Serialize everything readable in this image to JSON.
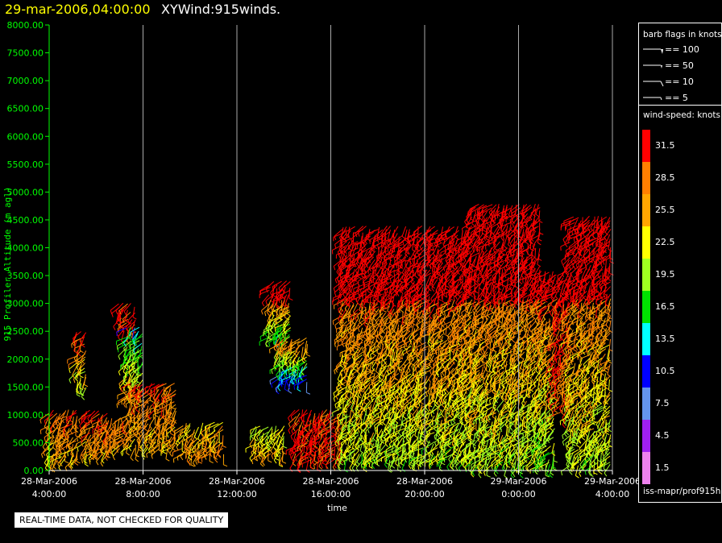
{
  "header": {
    "date_text": "29-mar-2006,04:00:00",
    "product_text": "XYWind:915winds."
  },
  "footer": {
    "quality_note": "REAL-TIME DATA, NOT CHECKED FOR QUALITY",
    "source_label": "iss-mapr/prof915h"
  },
  "legend": {
    "barb_title": "barb flags in knots",
    "barbs": [
      "== 100",
      "== 50",
      "== 10",
      "== 5"
    ],
    "speed_title": "wind-speed: knots",
    "speed_bins": [
      {
        "label": "31.5",
        "color": "#ff0000"
      },
      {
        "label": "28.5",
        "color": "#ff7f00"
      },
      {
        "label": "25.5",
        "color": "#ffa500"
      },
      {
        "label": "22.5",
        "color": "#ffff00"
      },
      {
        "label": "19.5",
        "color": "#a0ff20"
      },
      {
        "label": "16.5",
        "color": "#00e000"
      },
      {
        "label": "13.5",
        "color": "#00ffff"
      },
      {
        "label": "10.5",
        "color": "#0000ff"
      },
      {
        "label": "7.5",
        "color": "#6495ed"
      },
      {
        "label": "4.5",
        "color": "#a020f0"
      },
      {
        "label": "1.5",
        "color": "#ee82ee"
      }
    ]
  },
  "chart_data": {
    "type": "scatter",
    "title": "29-mar-2006,04:00:00  XYWind:915winds.",
    "xlabel": "time",
    "ylabel": "915 Profiler Altitude (m agl)",
    "xlim_hours": [
      0,
      24
    ],
    "ylim": [
      0,
      8000
    ],
    "yticks": [
      "0.00",
      "500.00",
      "1000.00",
      "1500.00",
      "2000.00",
      "2500.00",
      "3000.00",
      "3500.00",
      "4000.00",
      "4500.00",
      "5000.00",
      "5500.00",
      "6000.00",
      "6500.00",
      "7000.00",
      "7500.00",
      "8000.00"
    ],
    "xticks": [
      {
        "date": "28-Mar-2006",
        "time": "4:00:00"
      },
      {
        "date": "28-Mar-2006",
        "time": "8:00:00"
      },
      {
        "date": "28-Mar-2006",
        "time": "12:00:00"
      },
      {
        "date": "28-Mar-2006",
        "time": "16:00:00"
      },
      {
        "date": "28-Mar-2006",
        "time": "20:00:00"
      },
      {
        "date": "29-Mar-2006",
        "time": "0:00:00"
      },
      {
        "date": "29-Mar-2006",
        "time": "4:00:00"
      }
    ],
    "grid": "vertical",
    "data_groups": [
      {
        "t_start": 0.0,
        "t_end": 1.2,
        "z_bottom": 200,
        "z_top": 1100,
        "speed_top": 30,
        "speed_bottom": 24
      },
      {
        "t_start": 1.2,
        "t_end": 1.6,
        "z_bottom": 1500,
        "z_top": 2500,
        "speed_top": 30,
        "speed_bottom": 20
      },
      {
        "t_start": 1.6,
        "t_end": 2.5,
        "z_bottom": 300,
        "z_top": 1100,
        "speed_top": 31,
        "speed_bottom": 25
      },
      {
        "t_start": 2.5,
        "t_end": 3.5,
        "z_bottom": 400,
        "z_top": 1000,
        "speed_top": 29,
        "speed_bottom": 26
      },
      {
        "t_start": 3.0,
        "t_end": 3.7,
        "z_bottom": 2500,
        "z_top": 3000,
        "speed_top": 32,
        "speed_bottom": 30
      },
      {
        "t_start": 3.3,
        "t_end": 4.1,
        "z_bottom": 1300,
        "z_top": 2600,
        "speed_top": 14,
        "speed_bottom": 26
      },
      {
        "t_start": 3.5,
        "t_end": 5.5,
        "z_bottom": 400,
        "z_top": 1600,
        "speed_top": 30,
        "speed_bottom": 24
      },
      {
        "t_start": 5.7,
        "t_end": 7.5,
        "z_bottom": 300,
        "z_top": 900,
        "speed_top": 24,
        "speed_bottom": 27
      },
      {
        "t_start": 8.8,
        "t_end": 10.0,
        "z_bottom": 300,
        "z_top": 800,
        "speed_top": 21,
        "speed_bottom": 26
      },
      {
        "t_start": 9.4,
        "t_end": 10.3,
        "z_bottom": 2400,
        "z_top": 3400,
        "speed_top": 32,
        "speed_bottom": 17
      },
      {
        "t_start": 9.8,
        "t_end": 11.0,
        "z_bottom": 1600,
        "z_top": 2400,
        "speed_top": 28,
        "speed_bottom": 9
      },
      {
        "t_start": 10.5,
        "t_end": 12.5,
        "z_bottom": 200,
        "z_top": 1100,
        "speed_top": 31,
        "speed_bottom": 31
      },
      {
        "t_start": 12.5,
        "t_end": 18.0,
        "z_bottom": 200,
        "z_top": 4400,
        "speed_top": 32,
        "speed_bottom": 20
      },
      {
        "t_start": 18.0,
        "t_end": 21.0,
        "z_bottom": 100,
        "z_top": 4800,
        "speed_top": 32,
        "speed_bottom": 20
      },
      {
        "t_start": 21.0,
        "t_end": 21.6,
        "z_bottom": 100,
        "z_top": 3600,
        "speed_top": 30,
        "speed_bottom": 18
      },
      {
        "t_start": 21.6,
        "t_end": 22.2,
        "z_bottom": 1000,
        "z_top": 3600,
        "speed_top": 32,
        "speed_bottom": 28
      },
      {
        "t_start": 22.2,
        "t_end": 24.0,
        "z_bottom": 100,
        "z_top": 4600,
        "speed_top": 32,
        "speed_bottom": 20
      }
    ]
  }
}
